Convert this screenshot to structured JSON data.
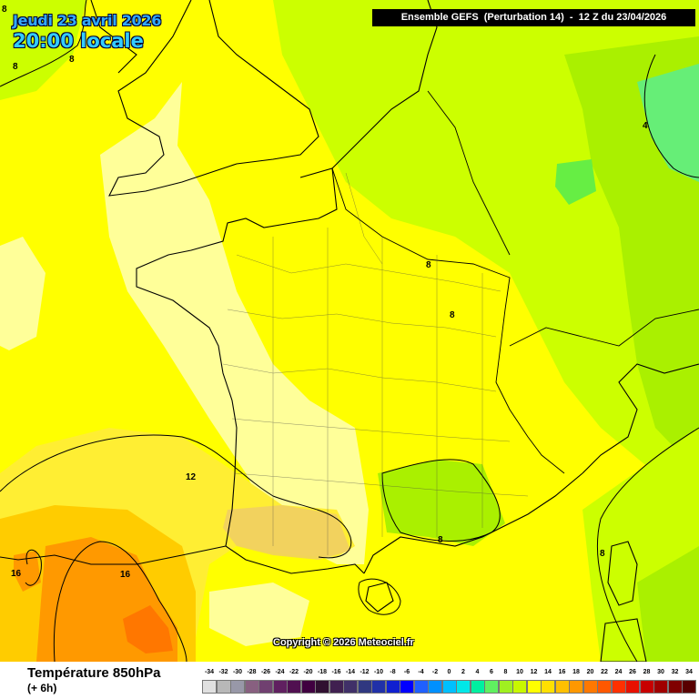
{
  "header": {
    "date": "Jeudi 23 avril 2026",
    "local_time": "20:00 locale",
    "run_info": "Ensemble GEFS  (Perturbation 14)  -  12 Z du 23/04/2026"
  },
  "copyright": "Copyright © 2026 Meteociel.fr",
  "isotherm_labels": [
    "8",
    "8",
    "4",
    "8",
    "8",
    "12",
    "8",
    "16",
    "16",
    "8",
    "8"
  ],
  "footer": {
    "variable": "Température 850hPa",
    "step": "(+ 6h)",
    "scale_ticks": [
      "-34",
      "-32",
      "-30",
      "-28",
      "-26",
      "-24",
      "-22",
      "-20",
      "-18",
      "-16",
      "-14",
      "-12",
      "-10",
      "-8",
      "-6",
      "-4",
      "-2",
      "0",
      "2",
      "4",
      "6",
      "8",
      "10",
      "12",
      "14",
      "16",
      "18",
      "20",
      "22",
      "24",
      "26",
      "28",
      "30",
      "32",
      "34"
    ],
    "scale_colors": [
      "#e0e0e0",
      "#b8b8b8",
      "#9898a8",
      "#886080",
      "#704070",
      "#602060",
      "#501050",
      "#400040",
      "#301030",
      "#402050",
      "#403068",
      "#303880",
      "#2030a8",
      "#1020d0",
      "#0000ff",
      "#2060ff",
      "#0090ff",
      "#00c0ff",
      "#00e8e8",
      "#00f0a0",
      "#60f060",
      "#a0f020",
      "#c8f800",
      "#ffff00",
      "#ffe000",
      "#ffc000",
      "#ff9800",
      "#ff7800",
      "#ff5800",
      "#ff3000",
      "#e81000",
      "#c80000",
      "#a00000",
      "#800000",
      "#580000"
    ]
  },
  "colors": {
    "light_yellow": "#ffff99",
    "yellow": "#ffff00",
    "gold": "#ffee22",
    "amber": "#ffbb00",
    "orange": "#ff9900",
    "dark_orange": "#ff7700",
    "lime": "#ccff00",
    "green_yellow": "#aaf000",
    "light_green": "#66ee44",
    "mint": "#66ff88"
  }
}
